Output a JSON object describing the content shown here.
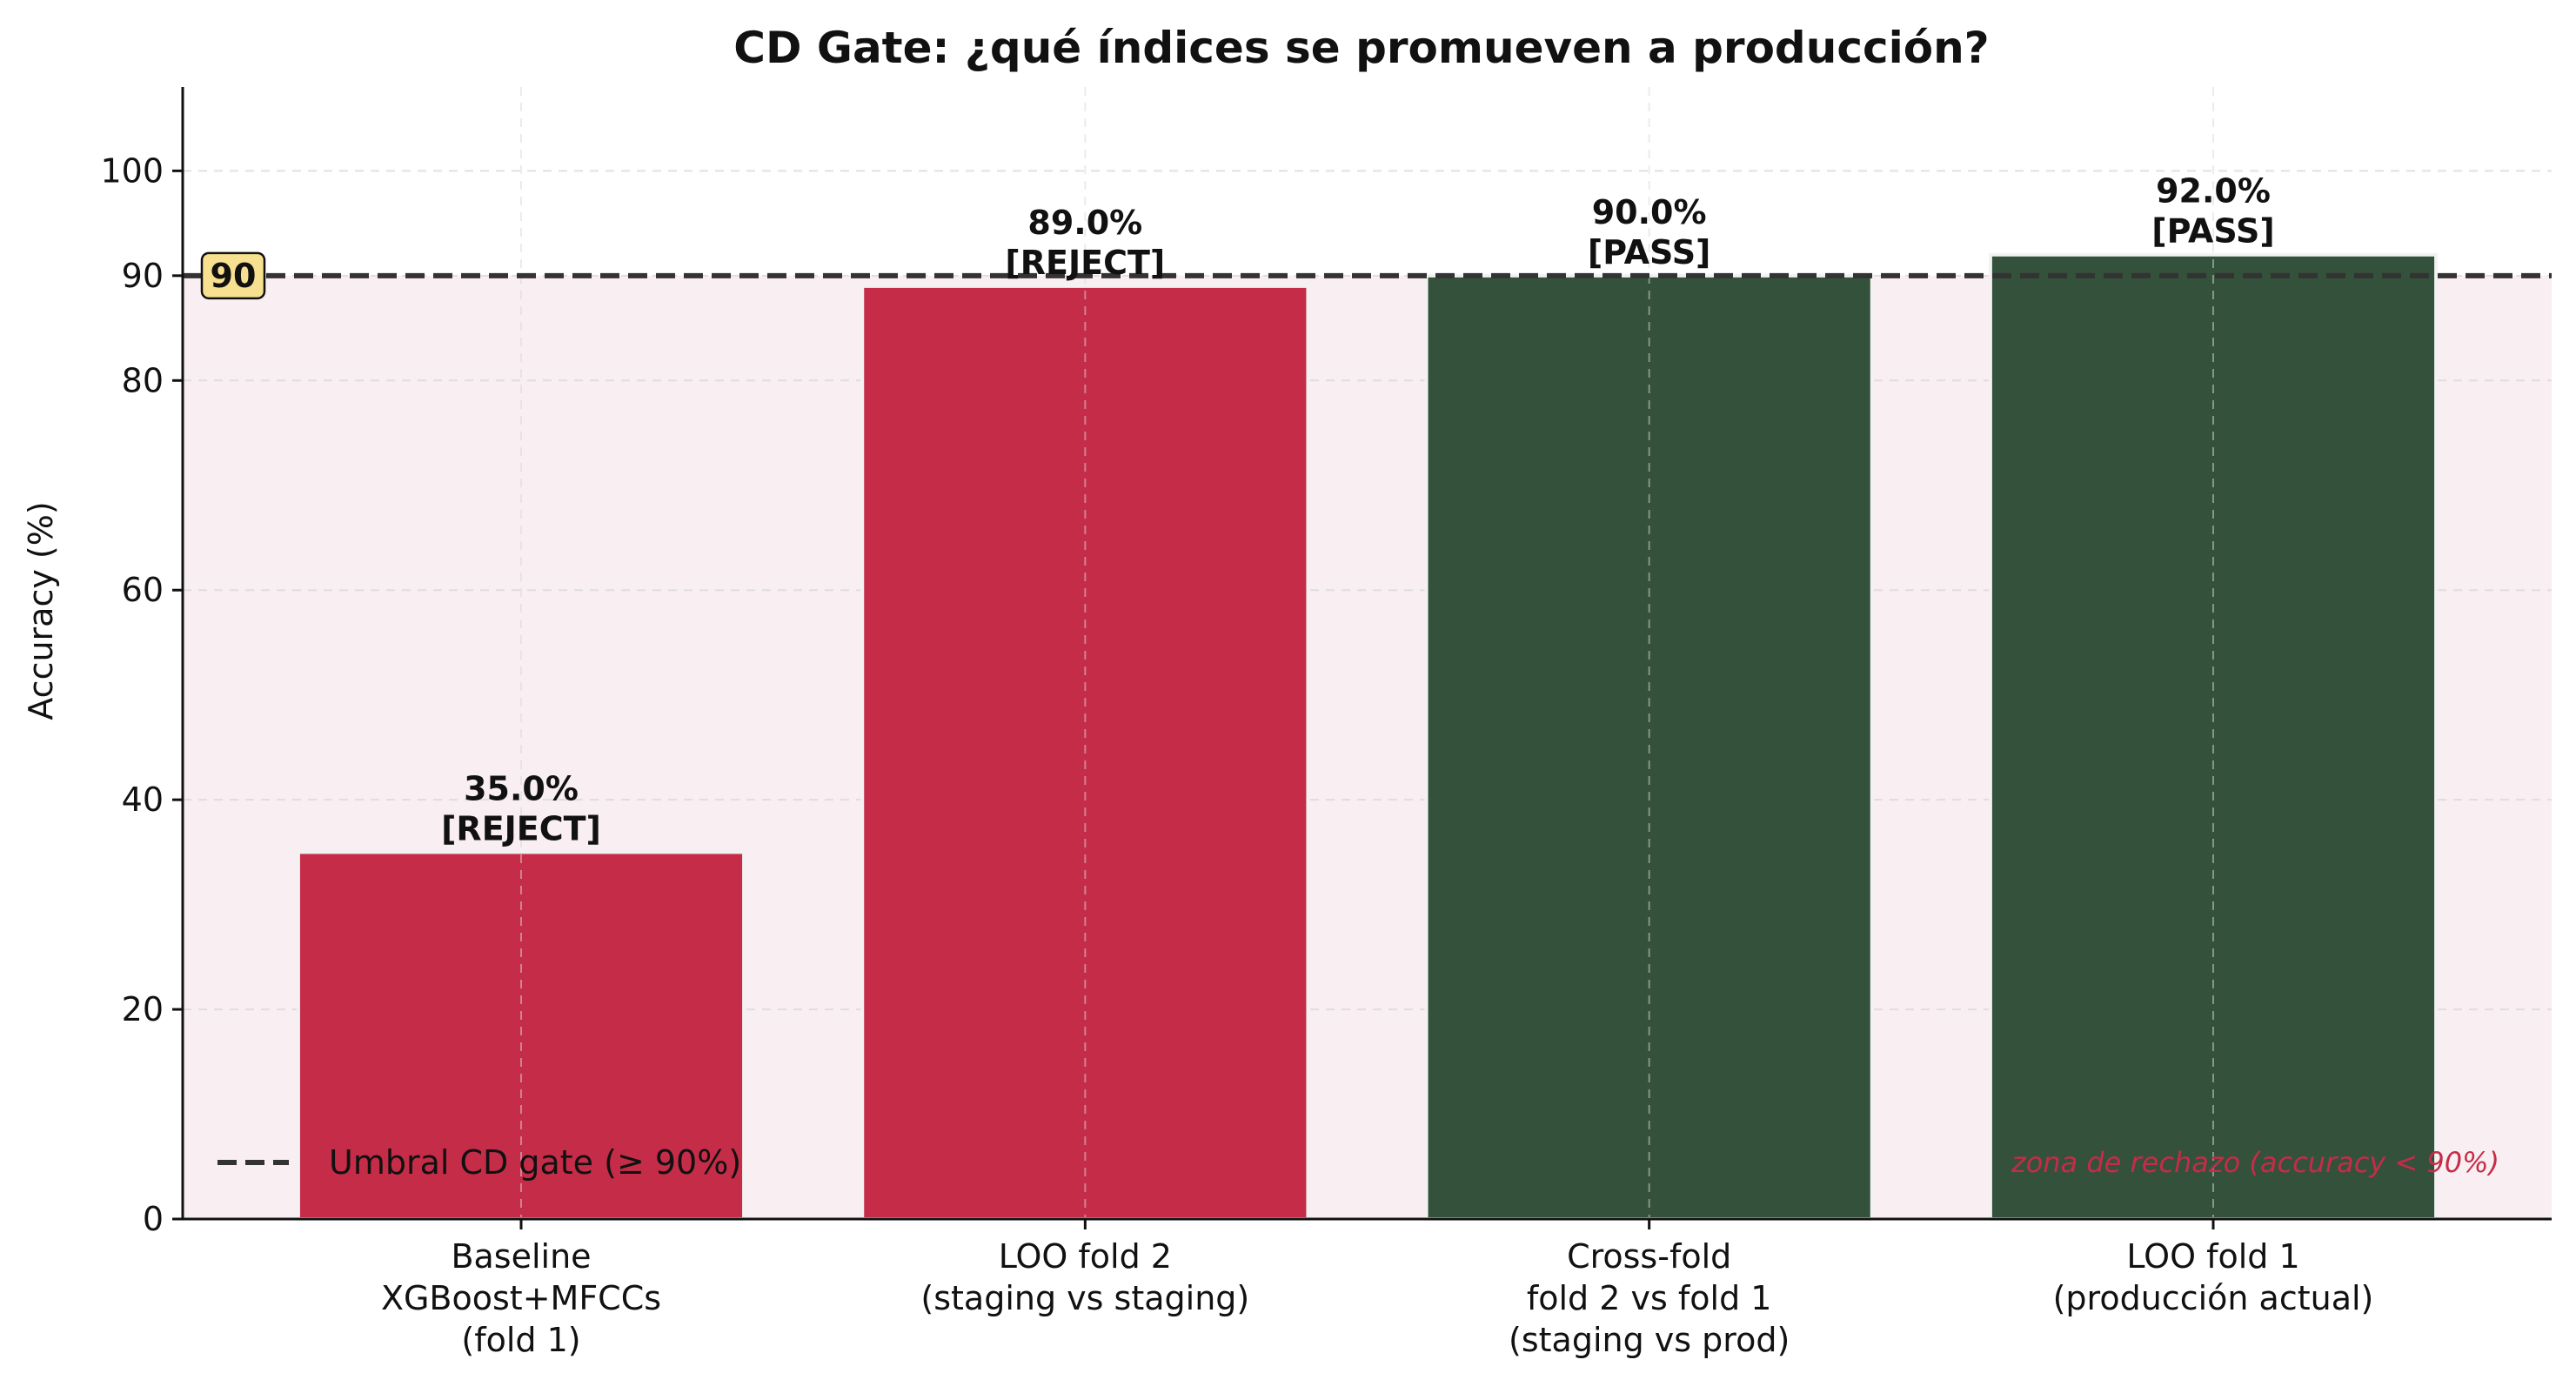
{
  "chart_data": {
    "type": "bar",
    "title": "CD Gate: ¿qué índices se promueven a producción?",
    "xlabel": "",
    "ylabel": "Accuracy (%)",
    "ylim": [
      0,
      108
    ],
    "yticks": [
      "0",
      "20",
      "40",
      "60",
      "80",
      "90",
      "100"
    ],
    "categories": [
      [
        "Baseline",
        "XGBoost+MFCCs",
        "(fold 1)"
      ],
      [
        "LOO fold 2",
        "(staging vs staging)"
      ],
      [
        "Cross-fold",
        "fold 2 vs fold 1",
        "(staging vs prod)"
      ],
      [
        "LOO fold 1",
        "(producción actual)"
      ]
    ],
    "values": [
      35.0,
      89.0,
      90.0,
      92.0
    ],
    "value_labels": [
      "35.0%",
      "89.0%",
      "90.0%",
      "92.0%"
    ],
    "status_labels": [
      "[REJECT]",
      "[REJECT]",
      "[PASS]",
      "[PASS]"
    ],
    "threshold": 90,
    "threshold_badge": "90",
    "legend": {
      "label": "Umbral CD gate (≥ 90%)",
      "placement": "lower-left"
    },
    "zone_annotation": "zona de rechazo (accuracy < 90%)",
    "grid": true,
    "colors": {
      "reject": "#c52c48",
      "pass": "#34513b",
      "reject_zone": "#f9eef1",
      "threshold_line": "#333333",
      "badge_fill": "#f7e08f",
      "annotation_text": "#c52c48"
    }
  }
}
